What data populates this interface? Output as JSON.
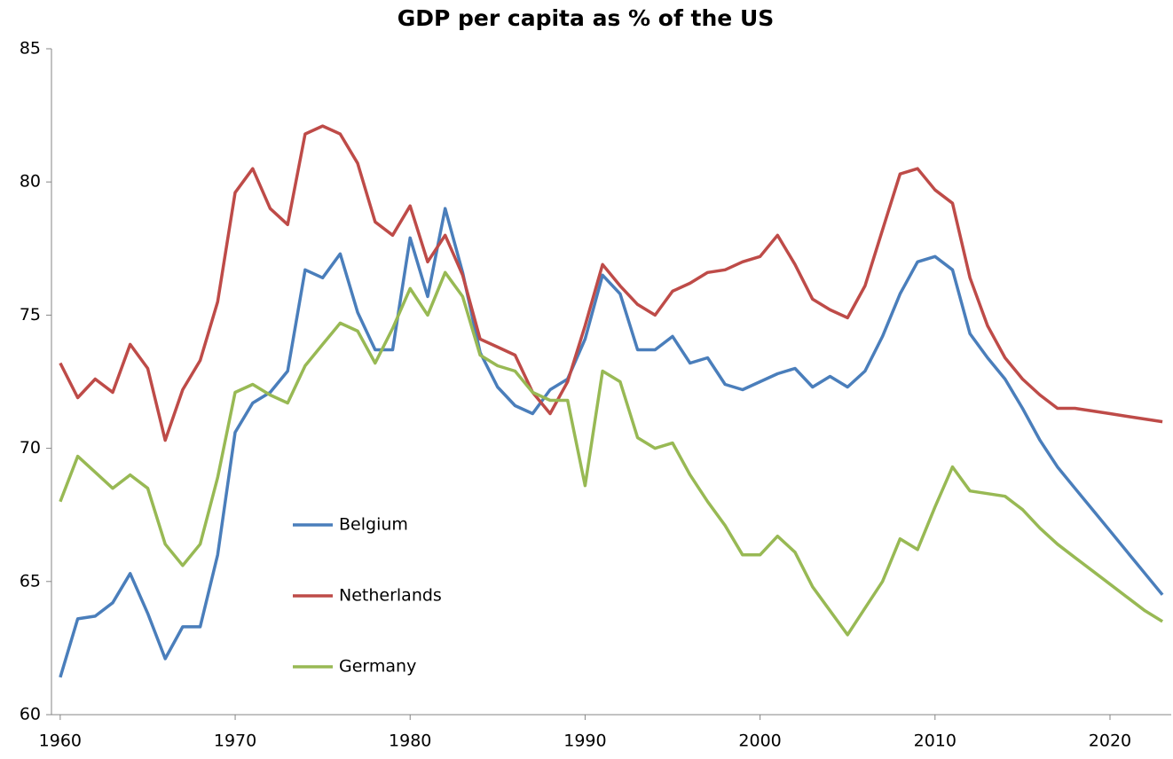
{
  "chart_data": {
    "type": "line",
    "title": "GDP per capita as % of the US",
    "x": [
      1960,
      1961,
      1962,
      1963,
      1964,
      1965,
      1966,
      1967,
      1968,
      1969,
      1970,
      1971,
      1972,
      1973,
      1974,
      1975,
      1976,
      1977,
      1978,
      1979,
      1980,
      1981,
      1982,
      1983,
      1984,
      1985,
      1986,
      1987,
      1988,
      1989,
      1990,
      1991,
      1992,
      1993,
      1994,
      1995,
      1996,
      1997,
      1998,
      1999,
      2000,
      2001,
      2002,
      2003,
      2004,
      2005,
      2006,
      2007,
      2008,
      2009,
      2010,
      2011,
      2012,
      2013,
      2014,
      2015,
      2016,
      2017,
      2018,
      2019,
      2020,
      2021,
      2022,
      2023
    ],
    "series": [
      {
        "name": "Belgium",
        "color": "#4a7ebb",
        "values": [
          61.4,
          63.6,
          63.7,
          64.2,
          65.3,
          63.8,
          62.1,
          63.3,
          63.3,
          66.0,
          70.6,
          71.7,
          72.1,
          72.9,
          76.7,
          76.4,
          77.3,
          75.1,
          73.7,
          73.7,
          77.9,
          75.7,
          79.0,
          76.6,
          73.6,
          72.3,
          71.6,
          71.3,
          72.2,
          72.6,
          74.1,
          76.5,
          75.8,
          73.7,
          73.7,
          74.2,
          73.2,
          73.4,
          72.4,
          72.2,
          72.5,
          72.8,
          73.0,
          72.3,
          72.7,
          72.3,
          72.9,
          74.2,
          75.8,
          77.0,
          77.2,
          76.7,
          74.3,
          73.4,
          72.6,
          71.5,
          70.3,
          69.3,
          68.5,
          67.7,
          66.9,
          66.1,
          65.3,
          64.5
        ]
      },
      {
        "name": "Netherlands",
        "color": "#be4b48",
        "values": [
          73.2,
          71.9,
          72.6,
          72.1,
          73.9,
          73.0,
          70.3,
          72.2,
          73.3,
          75.5,
          79.6,
          80.5,
          79.0,
          78.4,
          81.8,
          82.1,
          81.8,
          80.7,
          78.5,
          78.0,
          79.1,
          77.0,
          78.0,
          76.5,
          74.1,
          73.8,
          73.5,
          72.1,
          71.3,
          72.5,
          74.6,
          76.9,
          76.1,
          75.4,
          75.0,
          75.9,
          76.2,
          76.6,
          76.7,
          77.0,
          77.2,
          78.0,
          76.9,
          75.6,
          75.2,
          74.9,
          76.1,
          78.2,
          80.3,
          80.5,
          79.7,
          79.2,
          76.4,
          74.6,
          73.4,
          72.6,
          72.0,
          71.5,
          71.5,
          71.4,
          71.3,
          71.2,
          71.1,
          71.0
        ]
      },
      {
        "name": "Germany",
        "color": "#98b954",
        "values": [
          68.0,
          69.7,
          69.1,
          68.5,
          69.0,
          68.5,
          66.4,
          65.6,
          66.4,
          68.9,
          72.1,
          72.4,
          72.0,
          71.7,
          73.1,
          73.9,
          74.7,
          74.4,
          73.2,
          74.5,
          76.0,
          75.0,
          76.6,
          75.7,
          73.5,
          73.1,
          72.9,
          72.1,
          71.8,
          71.8,
          68.6,
          72.9,
          72.5,
          70.4,
          70.0,
          70.2,
          69.0,
          68.0,
          67.1,
          66.0,
          66.0,
          66.7,
          66.1,
          64.8,
          63.9,
          63.0,
          64.0,
          65.0,
          66.6,
          66.2,
          67.8,
          69.3,
          68.4,
          68.3,
          68.2,
          67.7,
          67.0,
          66.4,
          65.9,
          65.4,
          64.9,
          64.4,
          63.9,
          63.5
        ]
      }
    ],
    "xlim": [
      1959.5,
      2023.5
    ],
    "xticks": [
      1960,
      1970,
      1980,
      1990,
      2000,
      2010,
      2020
    ],
    "ylim": [
      60,
      85
    ],
    "yticks": [
      60,
      65,
      70,
      75,
      80,
      85
    ],
    "grid": false
  }
}
